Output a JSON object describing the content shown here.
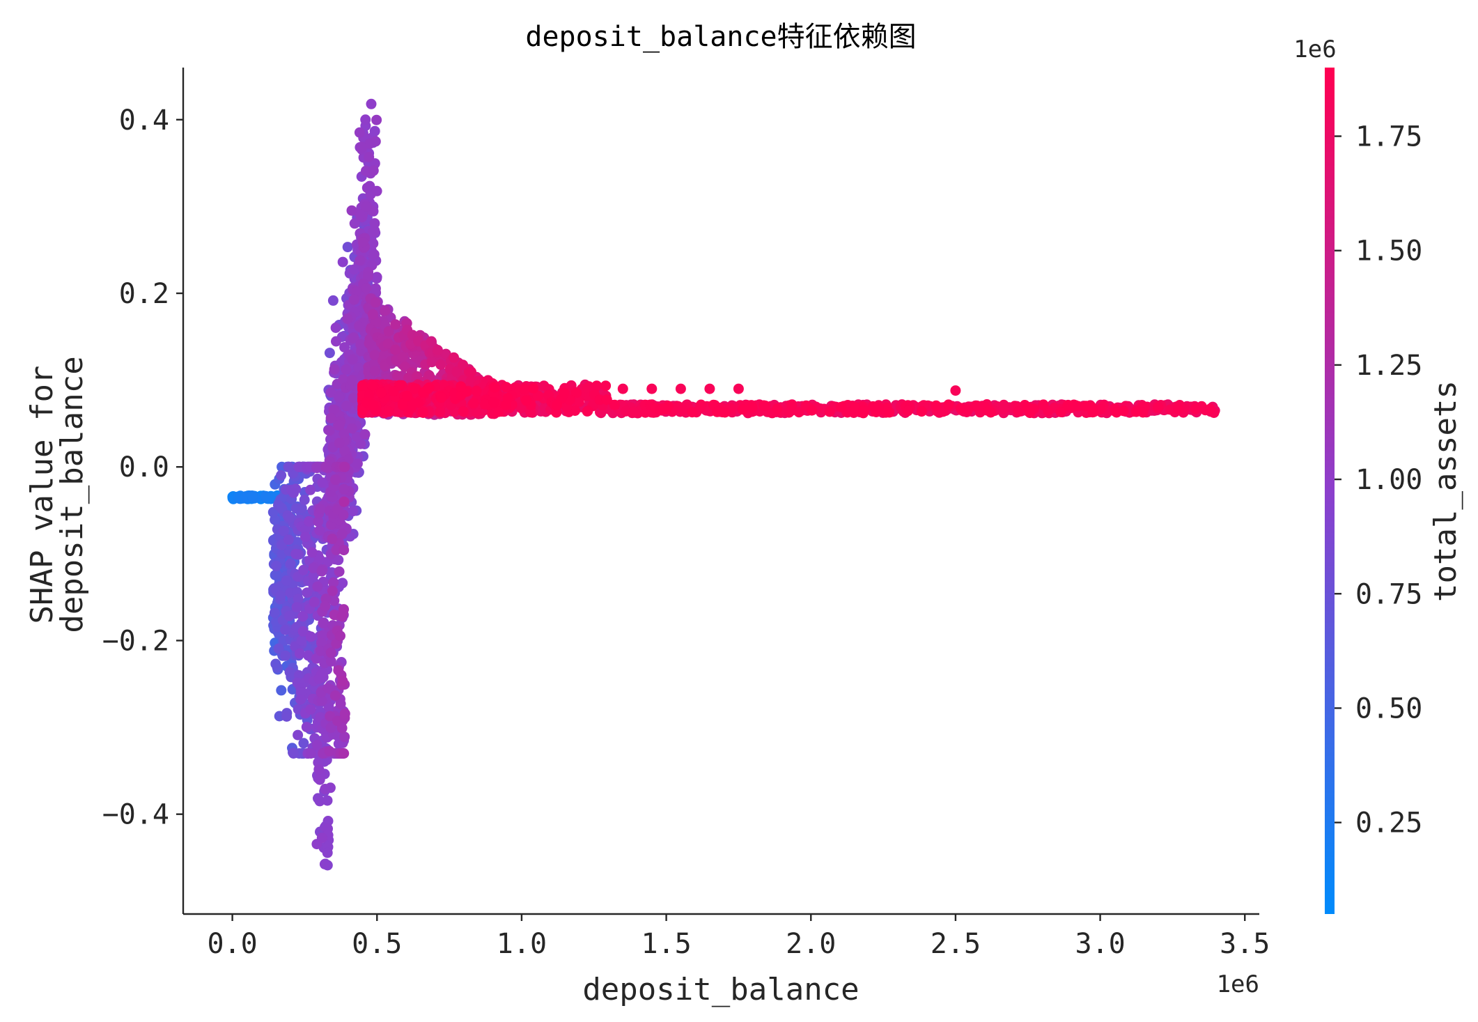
{
  "chart_data": {
    "type": "scatter",
    "title": "deposit_balance特征依赖图",
    "xlabel": "deposit_balance",
    "ylabel_line1": "SHAP value for",
    "ylabel_line2": "deposit_balance",
    "x_offset_label": "1e6",
    "xlim": [
      -0.17,
      3.55
    ],
    "ylim": [
      -0.515,
      0.46
    ],
    "x_ticks": [
      0.0,
      0.5,
      1.0,
      1.5,
      2.0,
      2.5,
      3.0,
      3.5
    ],
    "x_tick_labels": [
      "0.0",
      "0.5",
      "1.0",
      "1.5",
      "2.0",
      "2.5",
      "3.0",
      "3.5"
    ],
    "y_ticks": [
      -0.4,
      -0.2,
      0.0,
      0.2,
      0.4
    ],
    "y_tick_labels": [
      "−0.4",
      "−0.2",
      "0.0",
      "0.2",
      "0.4"
    ],
    "colorbar": {
      "label": "total_assets",
      "offset_label": "1e6",
      "range": [
        0.05,
        1.9
      ],
      "ticks": [
        0.25,
        0.5,
        0.75,
        1.0,
        1.25,
        1.5,
        1.75
      ],
      "tick_labels": [
        "0.25",
        "0.50",
        "0.75",
        "1.00",
        "1.25",
        "1.50",
        "1.75"
      ],
      "colors": [
        "#008bfb",
        "#8c3fcc",
        "#ff0051"
      ]
    },
    "points_sample": [
      {
        "x": 0.0,
        "y": -0.035,
        "c": 0.15
      },
      {
        "x": 0.15,
        "y": -0.035,
        "c": 0.2
      },
      {
        "x": 0.2,
        "y": -0.18,
        "c": 0.6
      },
      {
        "x": 0.28,
        "y": -0.3,
        "c": 0.9
      },
      {
        "x": 0.3,
        "y": -0.47,
        "c": 0.95
      },
      {
        "x": 0.35,
        "y": -0.05,
        "c": 0.9
      },
      {
        "x": 0.42,
        "y": 0.25,
        "c": 0.95
      },
      {
        "x": 0.47,
        "y": 0.42,
        "c": 1.0
      },
      {
        "x": 0.55,
        "y": 0.13,
        "c": 1.1
      },
      {
        "x": 0.9,
        "y": 0.07,
        "c": 1.8
      },
      {
        "x": 1.5,
        "y": 0.068,
        "c": 1.85
      },
      {
        "x": 2.5,
        "y": 0.088,
        "c": 1.85
      },
      {
        "x": 3.38,
        "y": 0.068,
        "c": 1.88
      }
    ]
  }
}
